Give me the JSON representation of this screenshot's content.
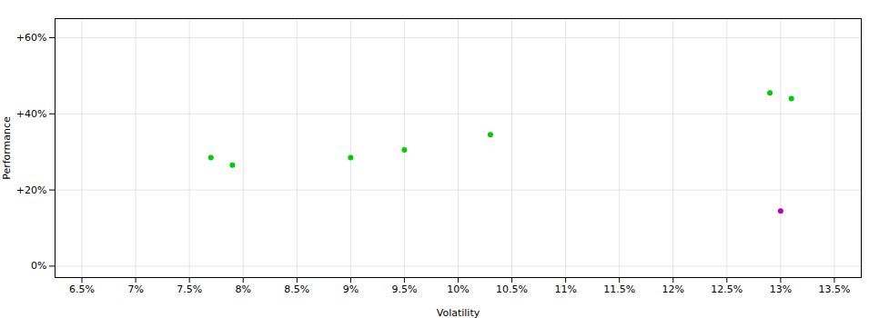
{
  "chart_data": {
    "type": "scatter",
    "xlabel": "Volatility",
    "ylabel": "Performance",
    "xlim": [
      0.0625,
      0.1375
    ],
    "ylim": [
      -0.03,
      0.65
    ],
    "xticks": [
      {
        "value": 0.065,
        "label": "6.5%"
      },
      {
        "value": 0.07,
        "label": "7%"
      },
      {
        "value": 0.075,
        "label": "7.5%"
      },
      {
        "value": 0.08,
        "label": "8%"
      },
      {
        "value": 0.085,
        "label": "8.5%"
      },
      {
        "value": 0.09,
        "label": "9%"
      },
      {
        "value": 0.095,
        "label": "9.5%"
      },
      {
        "value": 0.1,
        "label": "10%"
      },
      {
        "value": 0.105,
        "label": "10.5%"
      },
      {
        "value": 0.11,
        "label": "11%"
      },
      {
        "value": 0.115,
        "label": "11.5%"
      },
      {
        "value": 0.12,
        "label": "12%"
      },
      {
        "value": 0.125,
        "label": "12.5%"
      },
      {
        "value": 0.13,
        "label": "13%"
      },
      {
        "value": 0.135,
        "label": "13.5%"
      }
    ],
    "yticks": [
      {
        "value": 0.0,
        "label": "0%"
      },
      {
        "value": 0.2,
        "label": "+20%"
      },
      {
        "value": 0.4,
        "label": "+40%"
      },
      {
        "value": 0.6,
        "label": "+60%"
      }
    ],
    "grid": true,
    "series": [
      {
        "color": "#00cc00",
        "x": [
          0.077,
          0.079,
          0.09,
          0.095,
          0.103,
          0.129,
          0.131
        ],
        "values": [
          0.285,
          0.265,
          0.285,
          0.305,
          0.345,
          0.455,
          0.44
        ]
      },
      {
        "color": "#bb00bb",
        "x": [
          0.13
        ],
        "values": [
          0.145
        ]
      }
    ]
  }
}
